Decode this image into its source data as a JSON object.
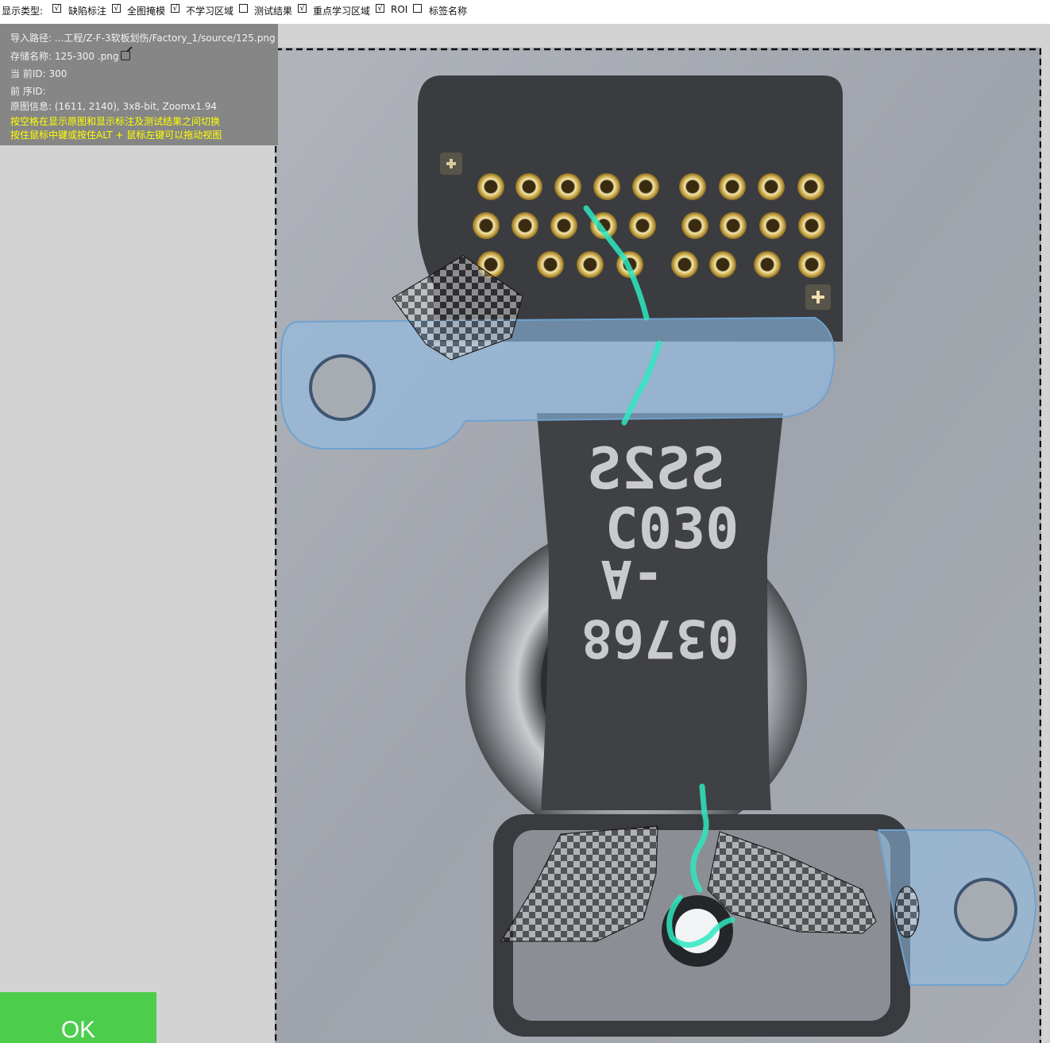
{
  "toolbar": {
    "display_type_label": "显示类型:",
    "options": [
      {
        "label": "缺陷标注",
        "checked": true
      },
      {
        "label": "全图掩模",
        "checked": true
      },
      {
        "label": "不学习区域",
        "checked": true
      },
      {
        "label": "测试结果",
        "checked": false
      },
      {
        "label": "重点学习区域",
        "checked": true
      },
      {
        "label": "ROI",
        "checked": true
      },
      {
        "label": "标签名称",
        "checked": false
      }
    ]
  },
  "info": {
    "import_path": "导入路径: ...工程/Z-F-3软板划伤/Factory_1/source/125.png",
    "save_name": "存储名称: 125-300  .png",
    "current_id": "当 前ID: 300",
    "prev_id": "前 序ID:",
    "image_info": "原图信息: (1611, 2140), 3x8-bit, Zoomx1.94",
    "hint_1": "按空格在显示原图和显示标注及测试结果之间切换",
    "hint_2": "按住鼠标中键或按住ALT + 鼠标左键可以拖动视图"
  },
  "image_text": {
    "line_1": "SS2S",
    "line_2": "C030",
    "line_3": "-A",
    "line_4": "03768"
  },
  "ok_button": {
    "label": "OK"
  },
  "colors": {
    "ok_green": "#4ccd4c",
    "hint_yellow": "#ffff00",
    "defect_teal": "#2ee8c0",
    "mask_blue": "#8fbde6"
  }
}
